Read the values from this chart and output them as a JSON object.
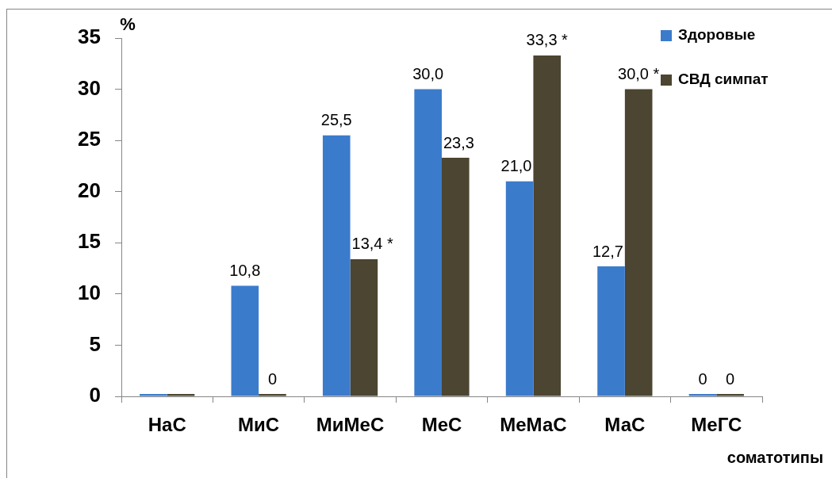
{
  "chart_data": {
    "type": "bar",
    "categories": [
      "НаС",
      "МиС",
      "МиМеС",
      "МеС",
      "МеМаС",
      "МаС",
      "МеГС"
    ],
    "xlabel": "соматотипы",
    "ylabel": "%",
    "ylim": [
      0,
      35
    ],
    "yticks": [
      0,
      5,
      10,
      15,
      20,
      25,
      30,
      35
    ],
    "legend": "top right",
    "series": [
      {
        "name": "Здоровые",
        "color": "#3b7bcc",
        "values": [
          0,
          10.8,
          25.5,
          30.0,
          21.0,
          12.7,
          0
        ],
        "value_labels": [
          null,
          "10,8",
          "25,5",
          "30,0",
          "21,0",
          "12,7",
          "0"
        ]
      },
      {
        "name": "СВД симпат",
        "color": "#4b4531",
        "values": [
          0,
          0,
          13.4,
          23.3,
          33.3,
          30.0,
          0
        ],
        "value_labels": [
          null,
          "0",
          "13,4 *",
          "23,3",
          "33,3 *",
          "30,0 *",
          "0"
        ]
      }
    ]
  }
}
